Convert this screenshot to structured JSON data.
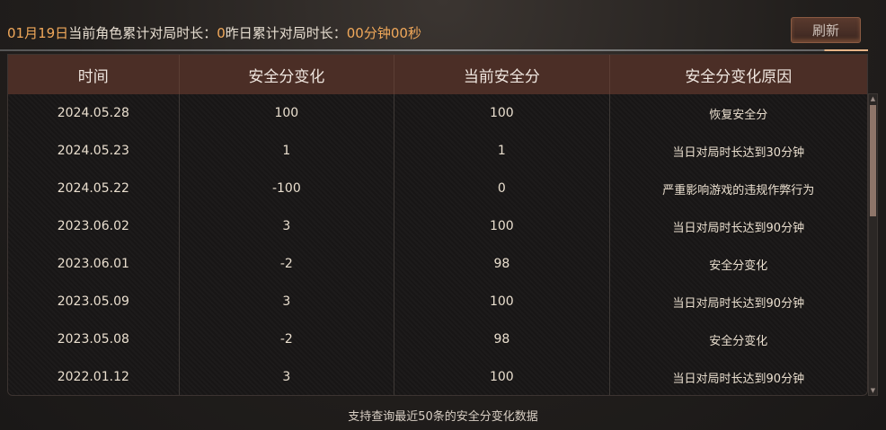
{
  "header": {
    "date": "01月19日",
    "label1": "当前角色累计对局时长：",
    "value1": "0",
    "label2": "昨日累计对局时长：",
    "value2": "00分钟00秒",
    "refresh_label": "刷新"
  },
  "table": {
    "columns": [
      "时间",
      "安全分变化",
      "当前安全分",
      "安全分变化原因"
    ],
    "rows": [
      [
        "2024.05.28",
        "100",
        "100",
        "恢复安全分"
      ],
      [
        "2024.05.23",
        "1",
        "1",
        "当日对局时长达到30分钟"
      ],
      [
        "2024.05.22",
        "-100",
        "0",
        "严重影响游戏的违规作弊行为"
      ],
      [
        "2023.06.02",
        "3",
        "100",
        "当日对局时长达到90分钟"
      ],
      [
        "2023.06.01",
        "-2",
        "98",
        "安全分变化"
      ],
      [
        "2023.05.09",
        "3",
        "100",
        "当日对局时长达到90分钟"
      ],
      [
        "2023.05.08",
        "-2",
        "98",
        "安全分变化"
      ],
      [
        "2022.01.12",
        "3",
        "100",
        "当日对局时长达到90分钟"
      ]
    ]
  },
  "footer": "支持查询最近50条的安全分变化数据",
  "colors": {
    "highlight": "#f0a85a",
    "header_bg": "#4b2e26"
  }
}
